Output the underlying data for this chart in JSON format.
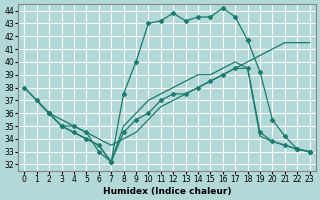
{
  "xlabel": "Humidex (Indice chaleur)",
  "xlim": [
    -0.5,
    23.5
  ],
  "ylim": [
    31.5,
    44.5
  ],
  "xticks": [
    0,
    1,
    2,
    3,
    4,
    5,
    6,
    7,
    8,
    9,
    10,
    11,
    12,
    13,
    14,
    15,
    16,
    17,
    18,
    19,
    20,
    21,
    22,
    23
  ],
  "yticks": [
    32,
    33,
    34,
    35,
    36,
    37,
    38,
    39,
    40,
    41,
    42,
    43,
    44
  ],
  "background_color": "#b2d8d8",
  "grid_color": "#ffffff",
  "line_color": "#1a7a6e",
  "line1_x": [
    0,
    1,
    2,
    3,
    4,
    5,
    6,
    7,
    8,
    9,
    10,
    11,
    12,
    13,
    14,
    15,
    16,
    17,
    18
  ],
  "line1_y": [
    38.0,
    37.0,
    36.0,
    35.0,
    35.0,
    34.5,
    33.0,
    32.2,
    37.5,
    40.0,
    43.0,
    43.2,
    43.8,
    43.2,
    43.5,
    43.5,
    44.2,
    43.5,
    41.7
  ],
  "line1_markers": true,
  "line2_x": [
    18,
    19,
    20,
    21,
    22,
    23
  ],
  "line2_y": [
    41.7,
    39.2,
    35.5,
    34.2,
    33.2,
    33.0
  ],
  "line2_markers": true,
  "line3_x": [
    0,
    1,
    2,
    3,
    4,
    5,
    6,
    7,
    8,
    9,
    10,
    11,
    12,
    13,
    14,
    15,
    16,
    17,
    18,
    19,
    20,
    21,
    22,
    23
  ],
  "line3_y": [
    38.0,
    37.0,
    36.0,
    35.5,
    35.0,
    34.5,
    34.0,
    33.5,
    34.0,
    34.5,
    35.5,
    36.5,
    37.0,
    37.5,
    38.0,
    38.5,
    39.0,
    39.5,
    40.0,
    40.5,
    41.0,
    41.5,
    41.5,
    41.5
  ],
  "line3_markers": false,
  "line4_x": [
    1,
    2,
    3,
    4,
    5,
    6,
    7,
    8,
    9,
    10,
    11,
    12,
    13,
    14,
    15,
    16,
    17,
    18,
    19,
    20,
    21,
    22,
    23
  ],
  "line4_y": [
    37.0,
    36.0,
    35.0,
    34.5,
    34.0,
    33.5,
    32.2,
    35.0,
    36.0,
    37.0,
    37.5,
    38.0,
    38.5,
    39.0,
    39.0,
    39.5,
    40.0,
    39.5,
    34.2,
    33.8,
    33.5,
    33.2,
    33.0
  ],
  "line4_markers": false,
  "line5_x": [
    2,
    3,
    4,
    5,
    6,
    7,
    8,
    9,
    10,
    11,
    12,
    13,
    14,
    15,
    16,
    17,
    18,
    19,
    20,
    21,
    22,
    23
  ],
  "line5_y": [
    36.0,
    35.0,
    34.5,
    34.0,
    33.5,
    32.2,
    34.5,
    35.5,
    36.0,
    37.0,
    37.5,
    37.5,
    38.0,
    38.5,
    39.0,
    39.5,
    39.5,
    34.5,
    33.8,
    33.5,
    33.2,
    33.0
  ],
  "line5_markers": true
}
